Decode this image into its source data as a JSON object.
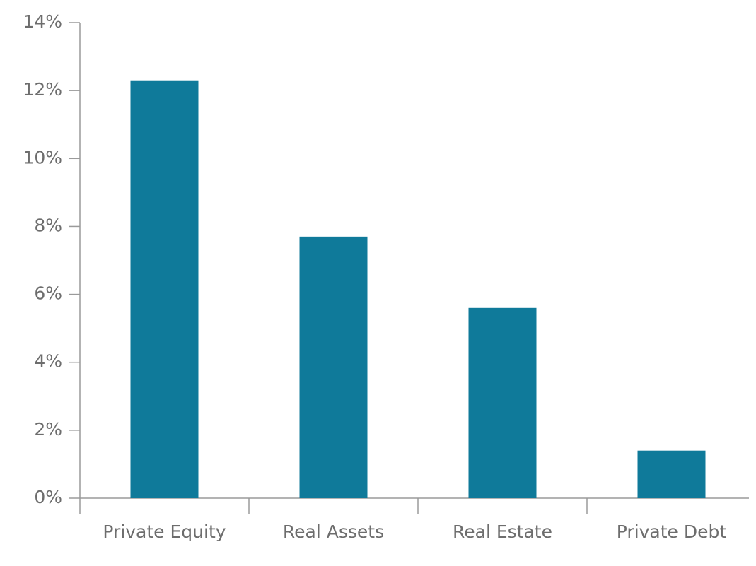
{
  "chart_data": {
    "type": "bar",
    "categories": [
      "Private Equity",
      "Real Assets",
      "Real Estate",
      "Private Debt"
    ],
    "values": [
      12.3,
      7.7,
      5.6,
      1.4
    ],
    "color": "#0f7a9a",
    "ylim": [
      0,
      14
    ],
    "yticks": [
      {
        "value": 0,
        "label": "0%"
      },
      {
        "value": 2,
        "label": "2%"
      },
      {
        "value": 4,
        "label": "4%"
      },
      {
        "value": 6,
        "label": "6%"
      },
      {
        "value": 8,
        "label": "8%"
      },
      {
        "value": 10,
        "label": "10%"
      },
      {
        "value": 12,
        "label": "12%"
      },
      {
        "value": 14,
        "label": "14%"
      }
    ],
    "grid": false
  }
}
